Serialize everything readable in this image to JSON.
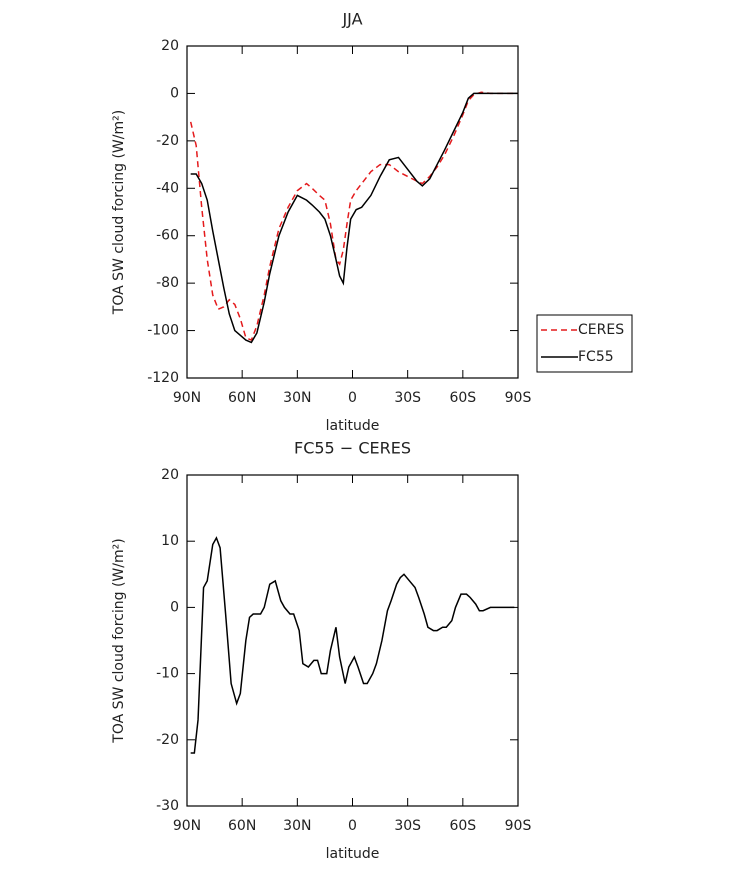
{
  "chart_data": [
    {
      "type": "line",
      "title": "JJA",
      "xlabel": "latitude",
      "ylabel": "TOA SW cloud forcing (W/m²)",
      "x": [
        88,
        85,
        82,
        79,
        76,
        73,
        70,
        67,
        64,
        61,
        58,
        55,
        52,
        48,
        45,
        40,
        35,
        30,
        25,
        22,
        18,
        15,
        12,
        9,
        7,
        5,
        3,
        1,
        -2,
        -5,
        -10,
        -15,
        -20,
        -25,
        -30,
        -35,
        -38,
        -42,
        -46,
        -50,
        -55,
        -60,
        -63,
        -66,
        -70,
        -75,
        -80,
        -85,
        -90
      ],
      "series": [
        {
          "name": "CERES",
          "color": "#e41a1c",
          "dash": true,
          "values": [
            -12,
            -22,
            -48,
            -70,
            -85,
            -91,
            -90,
            -87,
            -89,
            -95,
            -103,
            -104,
            -98,
            -85,
            -73,
            -57,
            -48,
            -41,
            -38,
            -40,
            -43,
            -45,
            -55,
            -70,
            -72,
            -66,
            -55,
            -45,
            -41,
            -38,
            -33,
            -30,
            -30,
            -33,
            -35,
            -37,
            -38,
            -35,
            -31,
            -26,
            -18,
            -9,
            -3,
            -0.5,
            0.5,
            0,
            0,
            0,
            0
          ]
        },
        {
          "name": "FC55",
          "color": "#000000",
          "dash": false,
          "values": [
            -34,
            -34,
            -38,
            -45,
            -58,
            -70,
            -82,
            -93,
            -100,
            -102,
            -104,
            -105,
            -101,
            -88,
            -76,
            -60,
            -50,
            -43,
            -45,
            -47,
            -50,
            -53,
            -60,
            -70,
            -77,
            -80,
            -65,
            -53,
            -49,
            -48,
            -43,
            -35,
            -28,
            -27,
            -32,
            -37,
            -39,
            -36,
            -30,
            -24,
            -16,
            -8,
            -2,
            0,
            0,
            0,
            0,
            0,
            0
          ]
        }
      ],
      "xlim": [
        90,
        -90
      ],
      "xticks": [
        {
          "value": 90,
          "label": "90N"
        },
        {
          "value": 60,
          "label": "60N"
        },
        {
          "value": 30,
          "label": "30N"
        },
        0,
        {
          "value": -30,
          "label": "30S"
        },
        {
          "value": -60,
          "label": "60S"
        },
        {
          "value": -90,
          "label": "90S"
        }
      ],
      "ylim": [
        -120,
        20
      ],
      "yticks": [
        20,
        0,
        -20,
        -40,
        -60,
        -80,
        -100,
        -120
      ],
      "legend": "right"
    },
    {
      "type": "line",
      "title": "FC55 − CERES",
      "xlabel": "latitude",
      "ylabel": "TOA SW cloud forcing (W/m²)",
      "x": [
        88,
        86,
        84,
        81,
        79,
        76,
        74,
        72,
        69,
        66,
        63,
        61,
        58,
        56,
        54,
        50,
        48,
        45,
        42,
        39,
        37,
        34,
        32,
        29,
        27,
        24,
        21,
        19,
        17,
        14,
        12,
        9,
        7,
        4,
        2,
        -1,
        -3,
        -6,
        -8,
        -11,
        -13,
        -16,
        -19,
        -21,
        -24,
        -26,
        -28,
        -31,
        -34,
        -36,
        -39,
        -41,
        -44,
        -46,
        -49,
        -51,
        -54,
        -56,
        -59,
        -62,
        -64,
        -67,
        -69,
        -71,
        -75,
        -77,
        -80,
        -83,
        -85,
        -88
      ],
      "values": [
        -22,
        -22,
        -17,
        3,
        4,
        9.5,
        10.5,
        9,
        -1,
        -11.5,
        -14.5,
        -13,
        -5,
        -1.5,
        -1,
        -1,
        0,
        3.5,
        4,
        1,
        0,
        -1,
        -1,
        -3.5,
        -8.5,
        -9,
        -8,
        -8,
        -10,
        -10,
        -6.5,
        -3,
        -7.5,
        -11.5,
        -9,
        -7.5,
        -9,
        -11.5,
        -11.5,
        -10,
        -8.5,
        -5,
        -0.5,
        1,
        3.5,
        4.5,
        5,
        4,
        3,
        1.5,
        -1,
        -3,
        -3.5,
        -3.5,
        -3,
        -3,
        -2,
        0,
        2,
        2,
        1.5,
        0.5,
        -0.5,
        -0.5,
        0,
        0,
        0,
        0,
        0,
        0
      ],
      "color": "#000000",
      "xlim": [
        90,
        -90
      ],
      "xticks": [
        {
          "value": 90,
          "label": "90N"
        },
        {
          "value": 60,
          "label": "60N"
        },
        {
          "value": 30,
          "label": "30N"
        },
        0,
        {
          "value": -30,
          "label": "30S"
        },
        {
          "value": -60,
          "label": "60S"
        },
        {
          "value": -90,
          "label": "90S"
        }
      ],
      "ylim": [
        -30,
        20
      ],
      "yticks": [
        20,
        10,
        0,
        -10,
        -20,
        -30
      ]
    }
  ]
}
